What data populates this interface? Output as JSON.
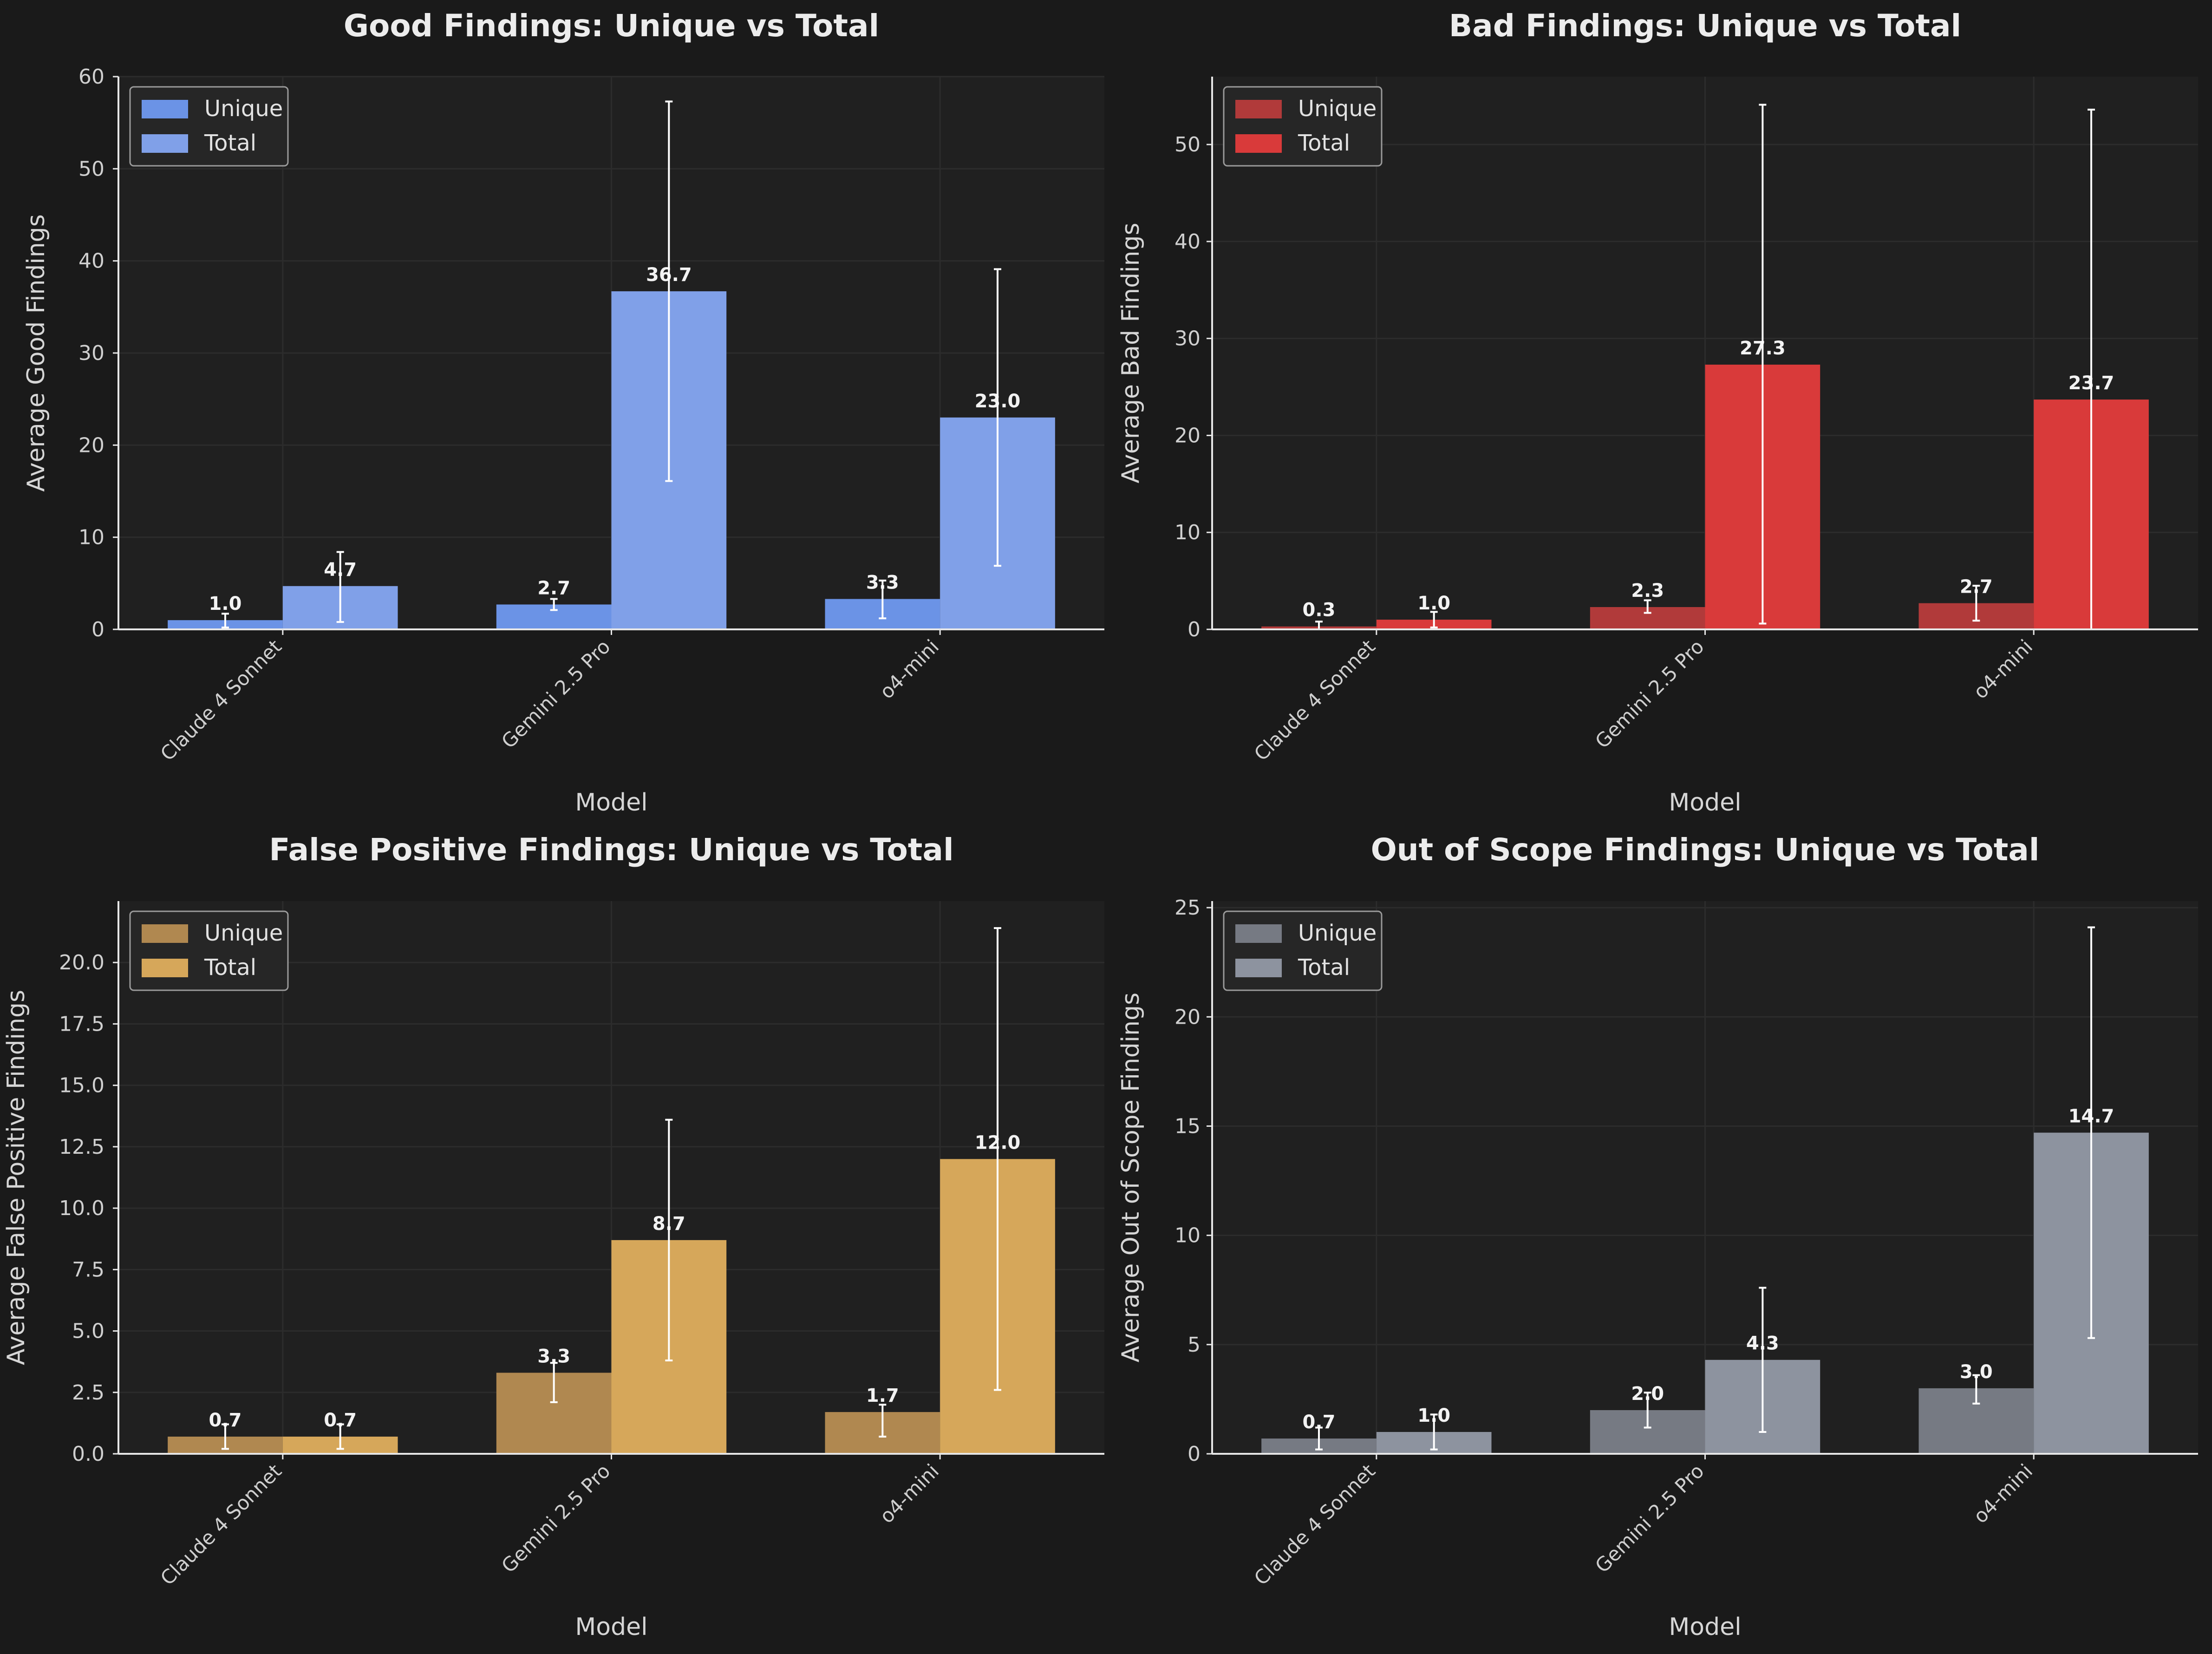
{
  "colors": {
    "background": "#1a1a1a",
    "plot_background": "#202020",
    "grid": "#2c2c2c",
    "axis": "#e6e6e6",
    "error_bar": "#ffffff"
  },
  "chart_data": [
    {
      "type": "bar",
      "title": "Good Findings: Unique vs Total",
      "xlabel": "Model",
      "ylabel": "Average Good Findings",
      "categories": [
        "Claude 4 Sonnet",
        "Gemini 2.5 Pro",
        "o4-mini"
      ],
      "ylim": [
        0,
        60
      ],
      "yticks": [
        0,
        10,
        20,
        30,
        40,
        50,
        60
      ],
      "tick_decimals": 0,
      "legend": "top-left",
      "grid": true,
      "series": [
        {
          "name": "Unique",
          "color": "#6b93e6",
          "values": [
            1.0,
            2.7,
            3.3
          ],
          "err_low": [
            0.2,
            2.1,
            1.2
          ],
          "err_high": [
            1.7,
            3.3,
            5.3
          ]
        },
        {
          "name": "Total",
          "color": "#80a0e8",
          "values": [
            4.7,
            36.7,
            23.0
          ],
          "err_low": [
            0.8,
            16.1,
            6.9
          ],
          "err_high": [
            8.4,
            57.3,
            39.1
          ]
        }
      ]
    },
    {
      "type": "bar",
      "title": "Bad Findings: Unique vs Total",
      "xlabel": "Model",
      "ylabel": "Average Bad Findings",
      "categories": [
        "Claude 4 Sonnet",
        "Gemini 2.5 Pro",
        "o4-mini"
      ],
      "ylim": [
        0,
        57
      ],
      "yticks": [
        0,
        10,
        20,
        30,
        40,
        50
      ],
      "tick_decimals": 0,
      "legend": "top-left",
      "grid": true,
      "series": [
        {
          "name": "Unique",
          "color": "#b13a3a",
          "values": [
            0.3,
            2.3,
            2.7
          ],
          "err_low": [
            0.0,
            1.7,
            0.9
          ],
          "err_high": [
            0.8,
            3.0,
            4.5
          ]
        },
        {
          "name": "Total",
          "color": "#d93a3a",
          "values": [
            1.0,
            27.3,
            23.7
          ],
          "err_low": [
            0.2,
            0.6,
            0.0
          ],
          "err_high": [
            1.8,
            54.1,
            53.6
          ]
        }
      ]
    },
    {
      "type": "bar",
      "title": "False Positive Findings: Unique vs Total",
      "xlabel": "Model",
      "ylabel": "Average False Positive Findings",
      "categories": [
        "Claude 4 Sonnet",
        "Gemini 2.5 Pro",
        "o4-mini"
      ],
      "ylim": [
        0,
        22.5
      ],
      "yticks": [
        0,
        2.5,
        5.0,
        7.5,
        10.0,
        12.5,
        15.0,
        17.5,
        20.0
      ],
      "tick_decimals": 1,
      "legend": "top-left",
      "grid": true,
      "series": [
        {
          "name": "Unique",
          "color": "#b08850",
          "values": [
            0.7,
            3.3,
            1.7
          ],
          "err_low": [
            0.2,
            2.1,
            0.7
          ],
          "err_high": [
            1.2,
            3.7,
            2.0
          ]
        },
        {
          "name": "Total",
          "color": "#d6a75a",
          "values": [
            0.7,
            8.7,
            12.0
          ],
          "err_low": [
            0.2,
            3.8,
            2.6
          ],
          "err_high": [
            1.2,
            13.6,
            21.4
          ]
        }
      ]
    },
    {
      "type": "bar",
      "title": "Out of Scope Findings: Unique vs Total",
      "xlabel": "Model",
      "ylabel": "Average Out of Scope Findings",
      "categories": [
        "Claude 4 Sonnet",
        "Gemini 2.5 Pro",
        "o4-mini"
      ],
      "ylim": [
        0,
        25.3
      ],
      "yticks": [
        0,
        5,
        10,
        15,
        20,
        25
      ],
      "tick_decimals": 0,
      "legend": "top-left",
      "grid": true,
      "series": [
        {
          "name": "Unique",
          "color": "#767a83",
          "values": [
            0.7,
            2.0,
            3.0
          ],
          "err_low": [
            0.2,
            1.2,
            2.3
          ],
          "err_high": [
            1.2,
            2.8,
            3.6
          ]
        },
        {
          "name": "Total",
          "color": "#8d939f",
          "values": [
            1.0,
            4.3,
            14.7
          ],
          "err_low": [
            0.2,
            1.0,
            5.3
          ],
          "err_high": [
            1.8,
            7.6,
            24.1
          ]
        }
      ]
    }
  ]
}
